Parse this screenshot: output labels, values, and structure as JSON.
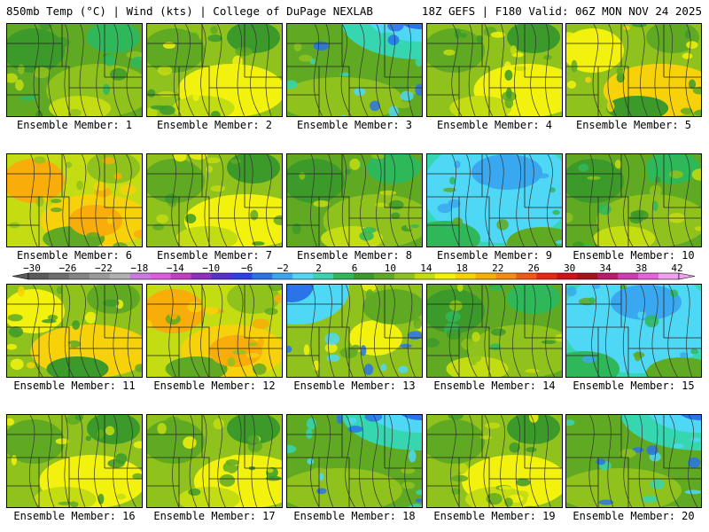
{
  "header": {
    "left": "850mb Temp (°C) | Wind (kts) | College of DuPage NEXLAB",
    "right": "18Z GEFS | F180 Valid: 06Z MON NOV 24 2025"
  },
  "colors": {
    "scale": [
      "#5a5a5a",
      "#6e6e6e",
      "#848484",
      "#9a9a9a",
      "#b0b0b0",
      "#c87ae0",
      "#e05ae0",
      "#c23fc2",
      "#8f2fbf",
      "#5a2fd0",
      "#2f3fe0",
      "#2a73e8",
      "#3aa8f0",
      "#4fd8f5",
      "#36d6b0",
      "#2fb85a",
      "#3c9a2a",
      "#5faa22",
      "#8fc21d",
      "#c4dc12",
      "#f2f20e",
      "#f7d20a",
      "#f8ad0a",
      "#f88a10",
      "#f05a12",
      "#e02c12",
      "#c8141a",
      "#a8101c",
      "#c0186a",
      "#d33ab0",
      "#e463d8",
      "#f0a0ee"
    ],
    "ticks_labels": [
      "−30",
      "−26",
      "−22",
      "−18",
      "−14",
      "−10",
      "−6",
      "−2",
      "2",
      "6",
      "10",
      "14",
      "18",
      "22",
      "26",
      "30",
      "34",
      "38",
      "42"
    ]
  },
  "panels": [
    {
      "label": "Ensemble Member: 1",
      "scheme": "mid"
    },
    {
      "label": "Ensemble Member: 2",
      "scheme": "warm"
    },
    {
      "label": "Ensemble Member: 3",
      "scheme": "coldNE"
    },
    {
      "label": "Ensemble Member: 4",
      "scheme": "warm"
    },
    {
      "label": "Ensemble Member: 5",
      "scheme": "warmE"
    },
    {
      "label": "Ensemble Member: 6",
      "scheme": "hot"
    },
    {
      "label": "Ensemble Member: 7",
      "scheme": "warm"
    },
    {
      "label": "Ensemble Member: 8",
      "scheme": "mid"
    },
    {
      "label": "Ensemble Member: 9",
      "scheme": "cold"
    },
    {
      "label": "Ensemble Member: 10",
      "scheme": "mid"
    },
    {
      "label": "Ensemble Member: 11",
      "scheme": "warmE"
    },
    {
      "label": "Ensemble Member: 12",
      "scheme": "hot"
    },
    {
      "label": "Ensemble Member: 13",
      "scheme": "coldNW"
    },
    {
      "label": "Ensemble Member: 14",
      "scheme": "mid"
    },
    {
      "label": "Ensemble Member: 15",
      "scheme": "cold"
    },
    {
      "label": "Ensemble Member: 16",
      "scheme": "warm"
    },
    {
      "label": "Ensemble Member: 17",
      "scheme": "warm"
    },
    {
      "label": "Ensemble Member: 18",
      "scheme": "coldNE"
    },
    {
      "label": "Ensemble Member: 19",
      "scheme": "warm"
    },
    {
      "label": "Ensemble Member: 20",
      "scheme": "coldNE"
    }
  ]
}
